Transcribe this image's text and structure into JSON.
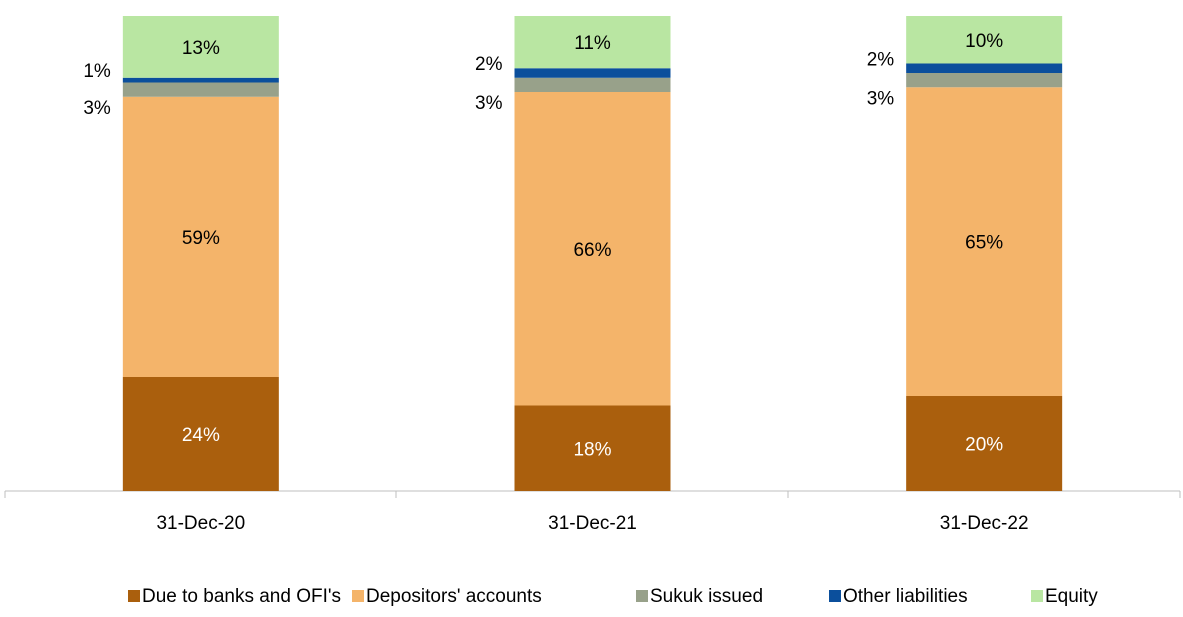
{
  "chart_data": {
    "type": "stacked_bar",
    "categories": [
      "31-Dec-20",
      "31-Dec-21",
      "31-Dec-22"
    ],
    "series": [
      {
        "name": "Due to banks and OFI's",
        "color": "#aa5f0d",
        "values": [
          24,
          18,
          20
        ],
        "value_labels": [
          "24%",
          "18%",
          "20%"
        ]
      },
      {
        "name": "Depositors' accounts",
        "color": "#f4b46a",
        "values": [
          59,
          66,
          65
        ],
        "value_labels": [
          "59%",
          "66%",
          "65%"
        ]
      },
      {
        "name": "Sukuk issued",
        "color": "#98a18a",
        "values": [
          3,
          3,
          3
        ],
        "value_labels": [
          "3%",
          "3%",
          "3%"
        ]
      },
      {
        "name": "Other liabilities",
        "color": "#0b4f9c",
        "values": [
          1,
          2,
          2
        ],
        "value_labels": [
          "1%",
          "2%",
          "2%"
        ]
      },
      {
        "name": "Equity",
        "color": "#b9e6a2",
        "values": [
          13,
          11,
          10
        ],
        "value_labels": [
          "13%",
          "11%",
          "10%"
        ]
      }
    ]
  }
}
